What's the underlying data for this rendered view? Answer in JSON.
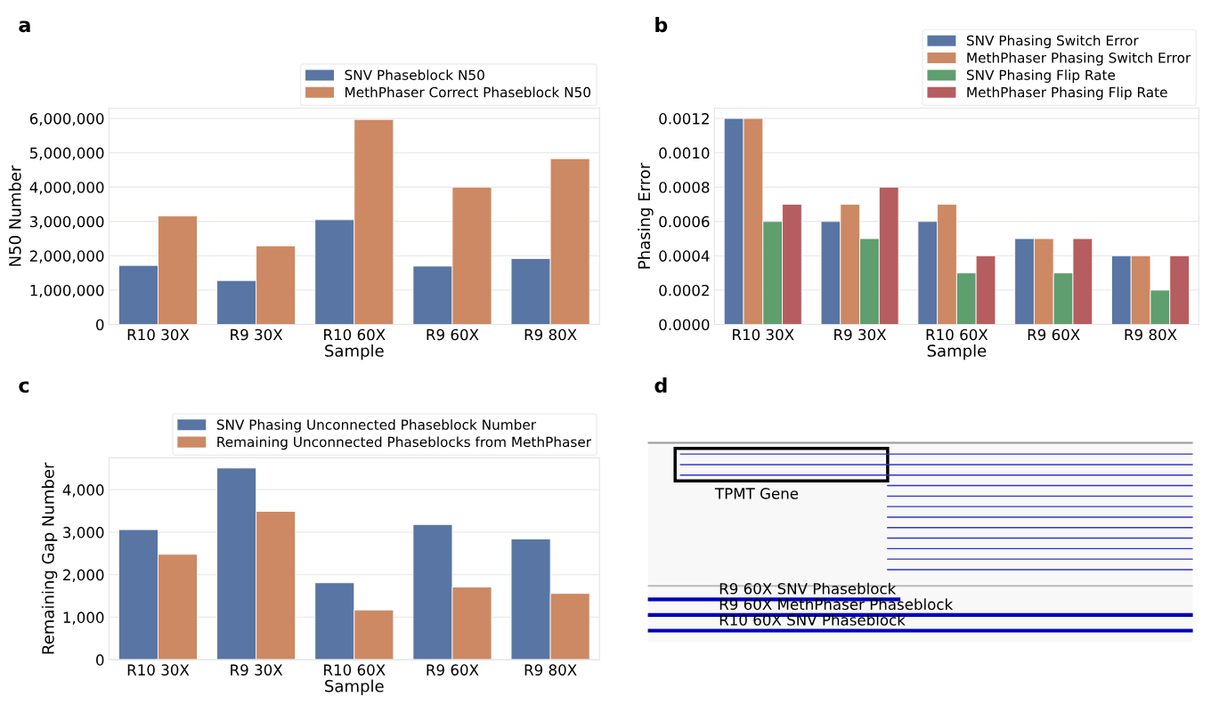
{
  "chart_data": [
    {
      "type": "bar",
      "title": "a",
      "xlabel": "Sample",
      "ylabel": "N50 Number",
      "categories": [
        "R10 30X",
        "R9 30X",
        "R10 60X",
        "R9 60X",
        "R9 80X"
      ],
      "series": [
        {
          "name": "SNV Phaseblock N50",
          "color": "#5875a4",
          "values": [
            1720000,
            1280000,
            3050000,
            1700000,
            1920000
          ]
        },
        {
          "name": "MethPhaser Correct Phaseblock N50",
          "color": "#cc8963",
          "values": [
            3160000,
            2290000,
            5970000,
            4000000,
            4830000
          ]
        }
      ],
      "ylim": [
        0,
        6300000
      ],
      "yticks": [
        0,
        {
          "value": 1000000,
          "label": "1,000,000"
        },
        {
          "value": 2000000,
          "label": "2,000,000"
        },
        {
          "value": 3000000,
          "label": "3,000,000"
        },
        {
          "value": 4000000,
          "label": "4,000,000"
        },
        {
          "value": 5000000,
          "label": "5,000,000"
        },
        {
          "value": 6000000,
          "label": "6,000,000"
        }
      ],
      "grid": "y",
      "legend": "top right"
    },
    {
      "type": "bar",
      "title": "b",
      "xlabel": "Sample",
      "ylabel": "Phasing Error",
      "categories": [
        "R10 30X",
        "R9 30X",
        "R10 60X",
        "R9 60X",
        "R9 80X"
      ],
      "series": [
        {
          "name": "SNV Phasing Switch Error",
          "color": "#5875a4",
          "values": [
            0.0012,
            0.0006,
            0.0006,
            0.0005,
            0.0004
          ]
        },
        {
          "name": "MethPhaser Phasing Switch Error",
          "color": "#cc8963",
          "values": [
            0.0012,
            0.0007,
            0.0007,
            0.0005,
            0.0004
          ]
        },
        {
          "name": "SNV Phasing Flip Rate",
          "color": "#5f9e6e",
          "values": [
            0.0006,
            0.0005,
            0.0003,
            0.0003,
            0.0002
          ]
        },
        {
          "name": "MethPhaser Phasing Flip Rate",
          "color": "#b55d60",
          "values": [
            0.0007,
            0.0008,
            0.0004,
            0.0005,
            0.0004
          ]
        }
      ],
      "ylim": [
        0,
        0.00126
      ],
      "yticks": [
        {
          "value": 0,
          "label": "0.0000"
        },
        {
          "value": 0.0002,
          "label": "0.0002"
        },
        {
          "value": 0.0004,
          "label": "0.0004"
        },
        {
          "value": 0.0006,
          "label": "0.0006"
        },
        {
          "value": 0.0008,
          "label": "0.0008"
        },
        {
          "value": 0.001,
          "label": "0.0010"
        },
        {
          "value": 0.0012,
          "label": "0.0012"
        }
      ],
      "grid": "y",
      "legend": "top right"
    },
    {
      "type": "bar",
      "title": "c",
      "xlabel": "Sample",
      "ylabel": "Remaining Gap Number",
      "categories": [
        "R10 30X",
        "R9 30X",
        "R10 60X",
        "R9 60X",
        "R9 80X"
      ],
      "series": [
        {
          "name": "SNV Phasing Unconnected Phaseblock Number",
          "color": "#5875a4",
          "values": [
            3060,
            4510,
            1810,
            3180,
            2840
          ]
        },
        {
          "name": "Remaining Unconnected Phaseblocks from MethPhaser",
          "color": "#cc8963",
          "values": [
            2480,
            3490,
            1170,
            1710,
            1560
          ]
        }
      ],
      "ylim": [
        0,
        4750
      ],
      "yticks": [
        0,
        {
          "value": 1000,
          "label": "1,000"
        },
        {
          "value": 2000,
          "label": "2,000"
        },
        {
          "value": 3000,
          "label": "3,000"
        },
        {
          "value": 4000,
          "label": "4,000"
        }
      ],
      "grid": "y",
      "legend": "top right"
    },
    {
      "type": "other",
      "title": "d",
      "annotations": [
        "TPMT Gene",
        "R9 60X SNV Phaseblock",
        "R9 60X MethPhaser Phaseblock",
        "R10 60X SNV Phaseblock"
      ]
    }
  ]
}
